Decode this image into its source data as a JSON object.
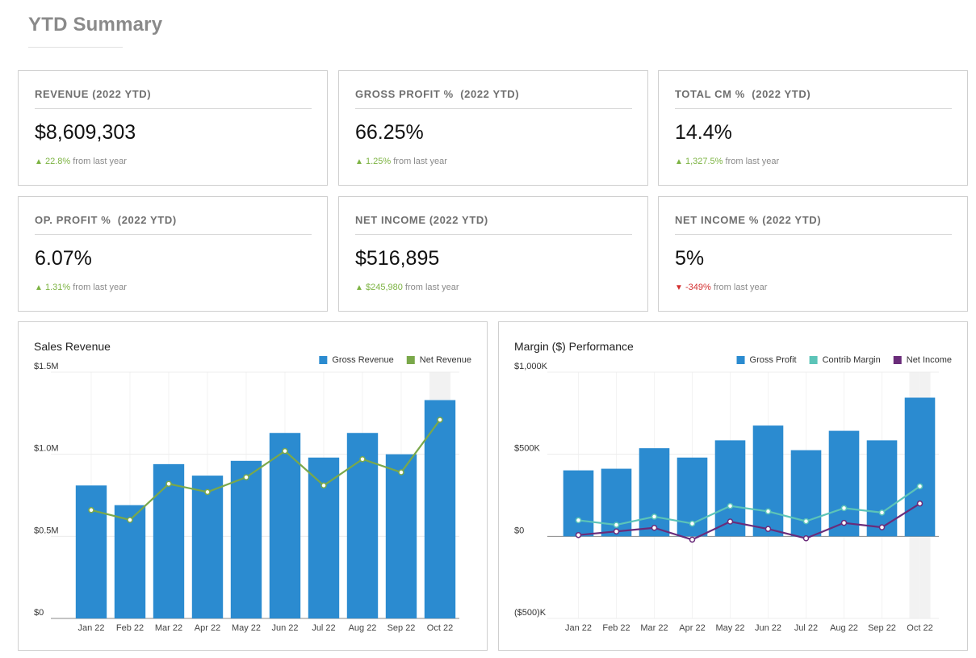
{
  "header": {
    "title": "YTD Summary"
  },
  "colors": {
    "bar_blue": "#2b8bd0",
    "net_revenue_green": "#7aa84a",
    "contrib_margin_teal": "#5cc4b8",
    "net_income_purple": "#6a2c7a",
    "positive": "#7cb342",
    "negative": "#d32f2f"
  },
  "kpis": [
    {
      "label": "REVENUE (2022 YTD)",
      "value": "$8,609,303",
      "arrow": "▲",
      "delta": "22.8%",
      "suffix": "from last year",
      "direction": "up"
    },
    {
      "label": "GROSS PROFIT %  (2022 YTD)",
      "value": "66.25%",
      "arrow": "▲",
      "delta": "1.25%",
      "suffix": "from last year",
      "direction": "up"
    },
    {
      "label": "TOTAL CM %  (2022 YTD)",
      "value": "14.4%",
      "arrow": "▲",
      "delta": "1,327.5%",
      "suffix": "from last year",
      "direction": "up"
    },
    {
      "label": "OP. PROFIT %  (2022 YTD)",
      "value": "6.07%",
      "arrow": "▲",
      "delta": "1.31%",
      "suffix": "from last year",
      "direction": "up"
    },
    {
      "label": "NET INCOME (2022 YTD)",
      "value": "$516,895",
      "arrow": "▲",
      "delta": "$245,980",
      "suffix": "from last year",
      "direction": "up"
    },
    {
      "label": "NET INCOME % (2022 YTD)",
      "value": "5%",
      "arrow": "▼",
      "delta": "-349%",
      "suffix": "from last year",
      "direction": "down"
    }
  ],
  "chart_data": [
    {
      "type": "bar",
      "title": "Sales Revenue",
      "categories": [
        "Jan 22",
        "Feb 22",
        "Mar 22",
        "Apr 22",
        "May 22",
        "Jun 22",
        "Jul 22",
        "Aug 22",
        "Sep 22",
        "Oct 22"
      ],
      "ylim": [
        0,
        1.5
      ],
      "yticks": [
        {
          "value": 1.5,
          "label": "$1.5M"
        },
        {
          "value": 1.0,
          "label": "$1.0M"
        },
        {
          "value": 0.5,
          "label": "$0.5M"
        },
        {
          "value": 0,
          "label": "$0"
        }
      ],
      "unit": "millions USD",
      "highlight_index": 9,
      "legend_position": "top-right",
      "series": [
        {
          "name": "Gross Revenue",
          "kind": "bar",
          "color": "#2b8bd0",
          "values": [
            0.81,
            0.69,
            0.94,
            0.87,
            0.96,
            1.13,
            0.98,
            1.13,
            1.0,
            1.33
          ]
        },
        {
          "name": "Net Revenue",
          "kind": "line",
          "color": "#7aa84a",
          "values": [
            0.66,
            0.6,
            0.82,
            0.77,
            0.86,
            1.02,
            0.81,
            0.97,
            0.89,
            1.21
          ]
        }
      ]
    },
    {
      "type": "bar",
      "title": "Margin ($) Performance",
      "categories": [
        "Jan 22",
        "Feb 22",
        "Mar 22",
        "Apr 22",
        "May 22",
        "Jun 22",
        "Jul 22",
        "Aug 22",
        "Sep 22",
        "Oct 22"
      ],
      "ylim": [
        -500,
        1000
      ],
      "yticks": [
        {
          "value": 1000,
          "label": "$1,000K"
        },
        {
          "value": 500,
          "label": "$500K"
        },
        {
          "value": 0,
          "label": "$0"
        },
        {
          "value": -500,
          "label": "($500)K"
        }
      ],
      "unit": "thousands USD",
      "highlight_index": 9,
      "legend_position": "top-right",
      "series": [
        {
          "name": "Gross Profit",
          "kind": "bar",
          "color": "#2b8bd0",
          "values": [
            402,
            412,
            537,
            480,
            585,
            675,
            525,
            643,
            585,
            845
          ]
        },
        {
          "name": "Contrib Margin",
          "kind": "line",
          "color": "#5cc4b8",
          "values": [
            98,
            70,
            120,
            78,
            185,
            152,
            92,
            172,
            145,
            305
          ]
        },
        {
          "name": "Net Income",
          "kind": "line",
          "color": "#6a2c7a",
          "values": [
            8,
            30,
            52,
            -20,
            90,
            45,
            -12,
            82,
            55,
            200
          ]
        }
      ]
    }
  ]
}
